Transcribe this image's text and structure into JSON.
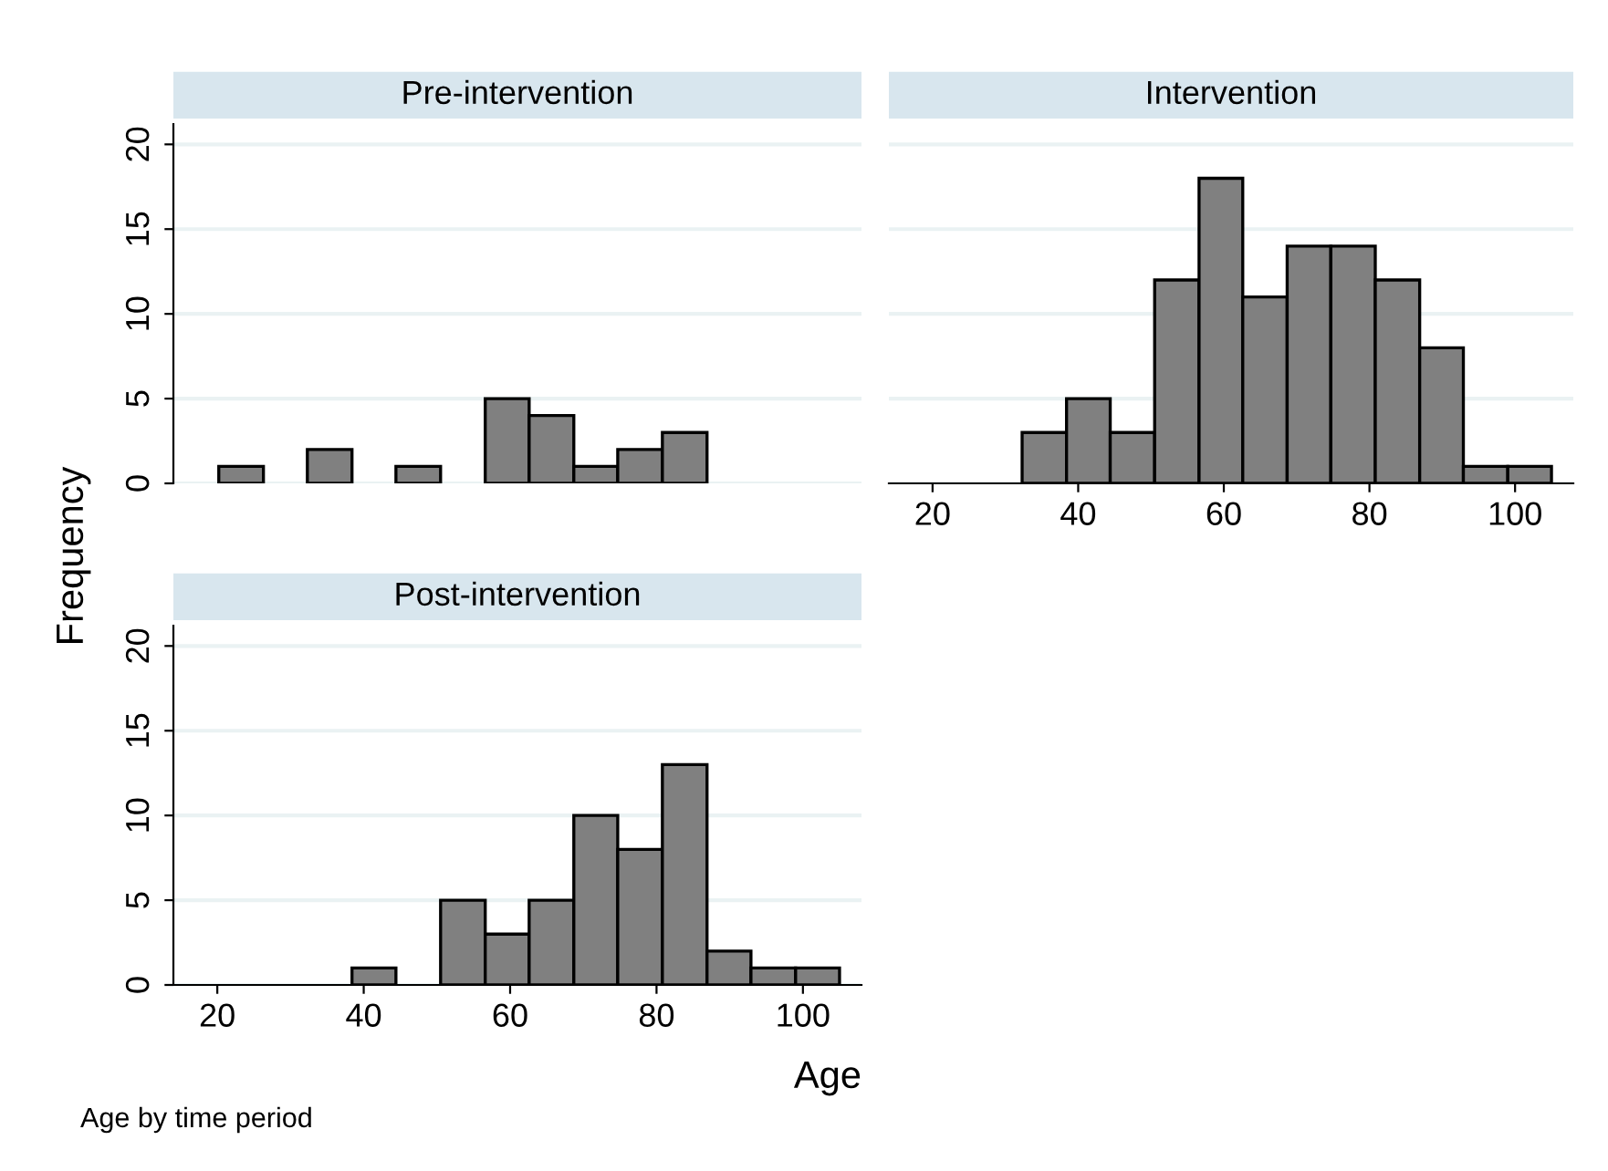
{
  "chart_data": [
    {
      "type": "histogram",
      "title": "Pre-intervention",
      "ylabel": "Frequency",
      "bins": [
        20.2,
        26.3,
        32.3,
        38.4,
        44.4,
        50.5,
        56.6,
        62.6,
        68.7,
        74.7,
        80.8,
        86.9
      ],
      "values": [
        1,
        0,
        2,
        0,
        1,
        0,
        5,
        4,
        1,
        2,
        3
      ],
      "color": "#808080",
      "xlim": [
        14,
        108
      ],
      "xticks": [
        20,
        40,
        60,
        80,
        100
      ],
      "ylim": [
        0,
        21.2
      ],
      "yticks": [
        0,
        5,
        10,
        15,
        20
      ],
      "grid": "y",
      "tick_labels": "y"
    },
    {
      "type": "histogram",
      "title": "Intervention",
      "bins": [
        32.3,
        38.4,
        44.4,
        50.5,
        56.6,
        62.6,
        68.7,
        74.7,
        80.8,
        86.9,
        92.9,
        99.0,
        105.0
      ],
      "values": [
        3,
        5,
        3,
        12,
        18,
        11,
        14,
        14,
        12,
        8,
        1,
        1
      ],
      "color": "#808080",
      "xlim": [
        14,
        108
      ],
      "xticks": [
        20,
        40,
        60,
        80,
        100
      ],
      "yticks": [
        0,
        5,
        10,
        15,
        20
      ],
      "grid": "y",
      "tick_labels": "x"
    },
    {
      "type": "histogram",
      "title": "Post-intervention",
      "xlabel": "Age",
      "annotations": [
        "Age by time period"
      ],
      "bins": [
        38.4,
        44.4,
        50.5,
        56.6,
        62.6,
        68.7,
        74.7,
        80.8,
        86.9,
        92.9,
        99.0,
        105.0
      ],
      "values": [
        1,
        0,
        5,
        3,
        5,
        10,
        8,
        13,
        2,
        1,
        1
      ],
      "color": "#808080",
      "xlim": [
        14,
        108
      ],
      "xticks": [
        20,
        40,
        60,
        80,
        100
      ],
      "ylim": [
        0,
        21.2
      ],
      "yticks": [
        0,
        5,
        10,
        15,
        20
      ],
      "grid": "y"
    }
  ]
}
